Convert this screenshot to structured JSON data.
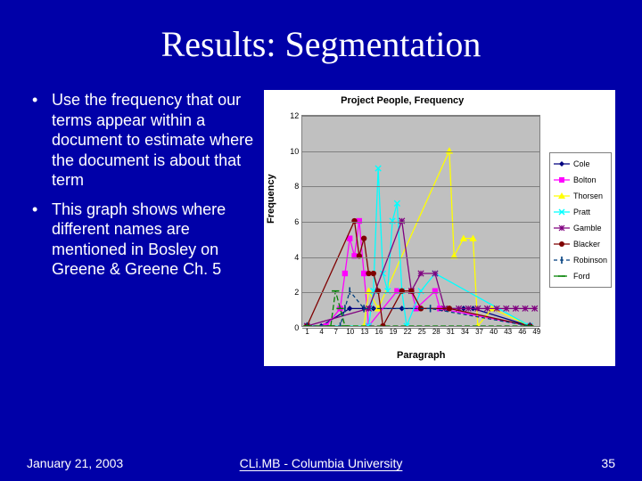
{
  "slide": {
    "title": "Results: Segmentation",
    "bullets": [
      "Use the frequency that our terms appear within a document to estimate where the document is about that term",
      "This graph shows where different names are mentioned in Bosley on Greene & Greene Ch. 5"
    ],
    "footer": {
      "date": "January 21, 2003",
      "center": "CLi.MB  -  Columbia University",
      "page": "35"
    }
  },
  "chart": {
    "type": "line-marker",
    "title": "Project People, Frequency",
    "xlabel": "Paragraph",
    "ylabel": "Frequency",
    "background_color": "#ffffff",
    "plot_bg_color": "#c0c0c0",
    "grid_color": "#7f7f7f",
    "xlim": [
      0,
      50
    ],
    "ylim": [
      0,
      12
    ],
    "yticks": [
      0,
      2,
      4,
      6,
      8,
      10,
      12
    ],
    "xticks": [
      1,
      4,
      7,
      10,
      13,
      16,
      19,
      22,
      25,
      28,
      31,
      34,
      37,
      40,
      43,
      46,
      49
    ],
    "tick_fontsize": 9,
    "label_fontsize": 11,
    "title_fontsize": 11,
    "series": [
      {
        "name": "Cole",
        "color": "#00007f",
        "marker": "diamond",
        "has_line": true,
        "dash": null,
        "data": [
          [
            1,
            0
          ],
          [
            4,
            0
          ],
          [
            10,
            1
          ],
          [
            13,
            1
          ],
          [
            14,
            1
          ],
          [
            15,
            1
          ],
          [
            21,
            1
          ],
          [
            31,
            1
          ],
          [
            34,
            1
          ],
          [
            36,
            1
          ],
          [
            48,
            0
          ]
        ]
      },
      {
        "name": "Bolton",
        "color": "#ff00ff",
        "marker": "square",
        "has_line": true,
        "dash": null,
        "data": [
          [
            1,
            0
          ],
          [
            5,
            0
          ],
          [
            8,
            1
          ],
          [
            9,
            3
          ],
          [
            10,
            5
          ],
          [
            11,
            4
          ],
          [
            12,
            6
          ],
          [
            13,
            3
          ],
          [
            14,
            0
          ],
          [
            20,
            2
          ],
          [
            23,
            2
          ],
          [
            24,
            1
          ],
          [
            28,
            2
          ],
          [
            29,
            1
          ],
          [
            48,
            0
          ]
        ]
      },
      {
        "name": "Thorsen",
        "color": "#ffff00",
        "marker": "triangle",
        "has_line": true,
        "dash": null,
        "data": [
          [
            1,
            0
          ],
          [
            13,
            0
          ],
          [
            14,
            2
          ],
          [
            16,
            1
          ],
          [
            31,
            10
          ],
          [
            32,
            4
          ],
          [
            34,
            5
          ],
          [
            36,
            5
          ],
          [
            37,
            0
          ],
          [
            40,
            1
          ],
          [
            48,
            0
          ]
        ]
      },
      {
        "name": "Pratt",
        "color": "#00ffff",
        "marker": "x",
        "has_line": true,
        "dash": null,
        "data": [
          [
            1,
            0
          ],
          [
            14,
            0
          ],
          [
            15,
            2
          ],
          [
            16,
            9
          ],
          [
            17,
            3
          ],
          [
            18,
            2
          ],
          [
            19,
            6
          ],
          [
            20,
            7
          ],
          [
            21,
            2
          ],
          [
            22,
            0
          ],
          [
            25,
            2
          ],
          [
            28,
            3
          ],
          [
            48,
            0
          ]
        ]
      },
      {
        "name": "Gamble",
        "color": "#7f007f",
        "marker": "asterisk",
        "has_line": true,
        "dash": null,
        "data": [
          [
            1,
            0
          ],
          [
            14,
            1
          ],
          [
            21,
            6
          ],
          [
            23,
            2
          ],
          [
            25,
            3
          ],
          [
            28,
            3
          ],
          [
            30,
            1
          ],
          [
            33,
            1
          ],
          [
            35,
            1
          ],
          [
            37,
            1
          ],
          [
            39,
            1
          ],
          [
            41,
            1
          ],
          [
            43,
            1
          ],
          [
            45,
            1
          ],
          [
            47,
            1
          ],
          [
            49,
            1
          ]
        ]
      },
      {
        "name": "Blacker",
        "color": "#7f0000",
        "marker": "circle",
        "has_line": true,
        "dash": null,
        "data": [
          [
            1,
            0
          ],
          [
            11,
            6
          ],
          [
            12,
            4
          ],
          [
            13,
            5
          ],
          [
            14,
            3
          ],
          [
            15,
            3
          ],
          [
            16,
            2
          ],
          [
            17,
            0
          ],
          [
            21,
            2
          ],
          [
            23,
            2
          ],
          [
            25,
            1
          ],
          [
            31,
            1
          ],
          [
            48,
            0
          ]
        ]
      },
      {
        "name": "Robinson",
        "color": "#003f7f",
        "marker": "tick",
        "has_line": true,
        "dash": "4 3",
        "data": [
          [
            1,
            0
          ],
          [
            8,
            0
          ],
          [
            9,
            1
          ],
          [
            10,
            2
          ],
          [
            13,
            1
          ],
          [
            27,
            1
          ],
          [
            48,
            0
          ]
        ]
      },
      {
        "name": "Ford",
        "color": "#008000",
        "marker": "dash",
        "has_line": true,
        "dash": "6 3",
        "data": [
          [
            1,
            0
          ],
          [
            6,
            0
          ],
          [
            7,
            2
          ],
          [
            8,
            1
          ],
          [
            9,
            0
          ],
          [
            48,
            0
          ]
        ]
      }
    ]
  }
}
